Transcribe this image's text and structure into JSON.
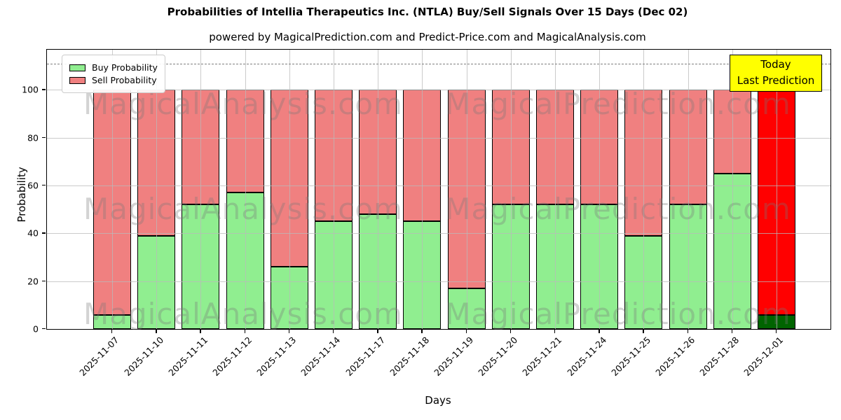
{
  "header": {
    "title": "Probabilities of Intellia Therapeutics Inc. (NTLA) Buy/Sell Signals Over 15 Days (Dec 02)",
    "subtitle": "powered by MagicalPrediction.com and Predict-Price.com and MagicalAnalysis.com"
  },
  "legend": {
    "items": [
      {
        "label": "Buy Probability",
        "color": "#90ee90"
      },
      {
        "label": "Sell Probability",
        "color": "#f08080"
      }
    ]
  },
  "annotation": {
    "line1": "Today",
    "line2": "Last Prediction",
    "bg_color": "#ffff00"
  },
  "watermarks": {
    "left": "MagicalAnalysis.com",
    "right": "MagicalPrediction.com"
  },
  "axes": {
    "xlabel": "Days",
    "ylabel": "Probability",
    "yticks": [
      0,
      20,
      40,
      60,
      80,
      100
    ]
  },
  "chart_data": {
    "type": "bar",
    "stacked": true,
    "title": "Probabilities of Intellia Therapeutics Inc. (NTLA) Buy/Sell Signals Over 15 Days (Dec 02)",
    "xlabel": "Days",
    "ylabel": "Probability",
    "ylim": [
      0,
      117
    ],
    "grid": true,
    "legend_position": "upper-left",
    "dashed_line_y": 111,
    "categories": [
      "2025-11-07",
      "2025-11-10",
      "2025-11-11",
      "2025-11-12",
      "2025-11-13",
      "2025-11-14",
      "2025-11-17",
      "2025-11-18",
      "2025-11-19",
      "2025-11-20",
      "2025-11-21",
      "2025-11-24",
      "2025-11-25",
      "2025-11-26",
      "2025-11-28",
      "2025-12-01"
    ],
    "series": [
      {
        "name": "Buy Probability",
        "color": "#90ee90",
        "values": [
          6,
          39,
          52,
          57,
          26,
          45,
          48,
          45,
          17,
          52,
          52,
          52,
          39,
          52,
          65,
          6
        ]
      },
      {
        "name": "Sell Probability",
        "color": "#f08080",
        "values": [
          94,
          61,
          48,
          43,
          74,
          55,
          52,
          55,
          83,
          48,
          48,
          48,
          61,
          48,
          35,
          94
        ]
      }
    ],
    "last_bar_colors": {
      "buy": "#006400",
      "sell": "#ff0000"
    }
  }
}
